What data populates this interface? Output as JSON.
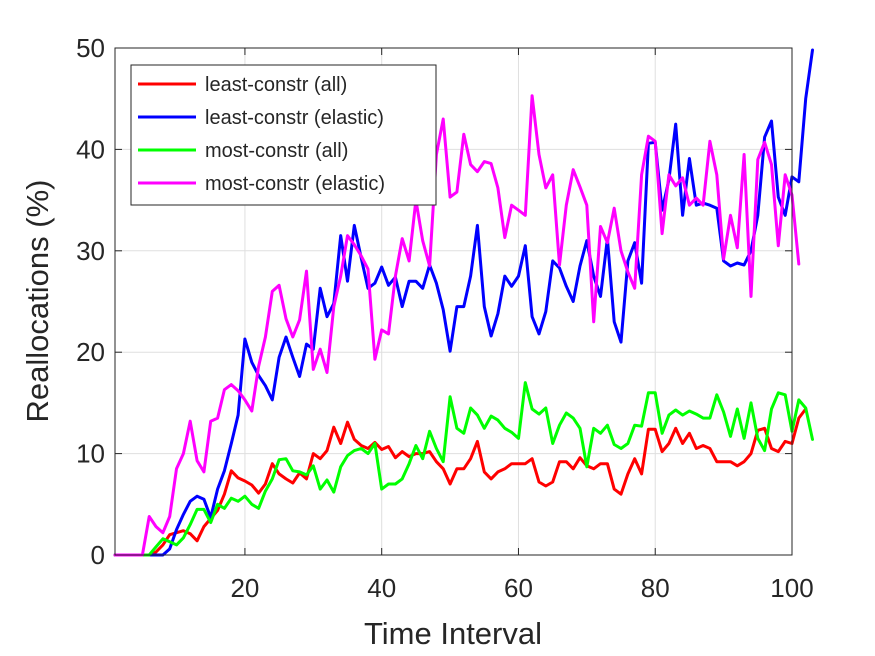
{
  "chart_data": {
    "type": "line",
    "xlabel": "Time Interval",
    "ylabel": "Reallocations (%)",
    "xlim": [
      1,
      100
    ],
    "ylim": [
      0,
      50
    ],
    "x_ticks": [
      20,
      40,
      60,
      80,
      100
    ],
    "y_ticks": [
      0,
      10,
      20,
      30,
      40,
      50
    ],
    "grid": true,
    "legend_position": "top-left",
    "series": [
      {
        "name": "least-constr (all)",
        "color": "#ff0000",
        "values": [
          0,
          0,
          0,
          0,
          0,
          0,
          0.3,
          1,
          2,
          2.2,
          2.4,
          2.1,
          1.4,
          2.8,
          3.6,
          4.4,
          6,
          8.3,
          7.6,
          7.3,
          6.9,
          6.1,
          7,
          9,
          8,
          7.5,
          7.1,
          8.1,
          7.5,
          10,
          9.5,
          10.3,
          12.6,
          11,
          13.1,
          11.4,
          10.8,
          10.5,
          11.1,
          10.4,
          10.7,
          9.6,
          10.2,
          9.7,
          10,
          10,
          10.2,
          9.2,
          8.5,
          7,
          8.5,
          8.5,
          9.5,
          11.2,
          8.2,
          7.5,
          8.2,
          8.5,
          9,
          9,
          9,
          9.5,
          7.2,
          6.8,
          7.2,
          9.2,
          9.2,
          8.5,
          9.6,
          8.8,
          8.5,
          9,
          9,
          6.5,
          6,
          8,
          9.5,
          8,
          12.4,
          12.4,
          10.2,
          11,
          12.5,
          11,
          12,
          10.5,
          10.8,
          10.5,
          9.2,
          9.2,
          9.2,
          8.8,
          9.2,
          10,
          12.3,
          12.5,
          10.5,
          10.2,
          11.2,
          11,
          13.5,
          14.4
        ]
      },
      {
        "name": "least-constr (elastic)",
        "color": "#0000ff",
        "values": [
          0,
          0,
          0,
          0,
          0,
          0,
          0,
          0,
          0.6,
          2.5,
          4,
          5.3,
          5.8,
          5.5,
          3.7,
          6.5,
          8.3,
          11,
          13.8,
          21.3,
          19,
          17.7,
          16.7,
          15.3,
          19.5,
          21.5,
          19.5,
          17.6,
          20.8,
          20.3,
          26.3,
          23.5,
          24.8,
          31.5,
          27,
          32.5,
          29.3,
          26.3,
          26.8,
          28.4,
          26.6,
          27.4,
          24.5,
          27,
          27,
          26.3,
          28.6,
          26.8,
          24.2,
          20.1,
          24.5,
          24.5,
          27.5,
          32.5,
          24.5,
          21.6,
          23.8,
          27.5,
          26.5,
          27.5,
          30.5,
          23.5,
          21.8,
          24,
          29,
          28.3,
          26.5,
          25,
          28.5,
          31,
          27.5,
          25.5,
          31.2,
          23,
          21,
          29,
          30.8,
          26.8,
          40.6,
          40.7,
          34,
          37,
          42.5,
          33.5,
          39.1,
          34.5,
          34.7,
          34.5,
          34.2,
          29,
          28.5,
          28.8,
          28.6,
          30,
          33.5,
          41.2,
          42.8,
          35.3,
          33.5,
          37.3,
          36.8,
          45,
          49.8
        ]
      },
      {
        "name": "most-constr (all)",
        "color": "#00ff00",
        "values": [
          0,
          0,
          0,
          0,
          0,
          0,
          0.8,
          1.6,
          1.3,
          1,
          1.7,
          3,
          4.5,
          4.5,
          3.2,
          5,
          4.6,
          5.6,
          5.3,
          5.8,
          5,
          4.6,
          6.3,
          7.5,
          9.4,
          9.5,
          8.3,
          8.2,
          7.9,
          8.8,
          6.5,
          7.4,
          6.2,
          8.7,
          9.8,
          10.3,
          10.5,
          10,
          11,
          6.5,
          7,
          7,
          7.5,
          9,
          10.8,
          9.5,
          12.2,
          10.5,
          9.2,
          15.6,
          12.5,
          12,
          14.5,
          13.8,
          12.5,
          13.7,
          13.3,
          12.5,
          12.1,
          11.5,
          17,
          14.4,
          13.9,
          14.5,
          11,
          12.8,
          14,
          13.5,
          12.5,
          8.7,
          12.5,
          12,
          12.8,
          10.9,
          10.5,
          11,
          12.8,
          12.7,
          16,
          16,
          12,
          13.8,
          14.3,
          13.8,
          14.2,
          13.9,
          13.5,
          13.5,
          15.8,
          14.1,
          11.7,
          14.4,
          11.5,
          15,
          11.5,
          10.3,
          14.4,
          16,
          15.8,
          12.2,
          15.3,
          14.5,
          11.4
        ]
      },
      {
        "name": "most-constr (elastic)",
        "color": "#ff00ff",
        "values": [
          0,
          0,
          0,
          0,
          0,
          3.8,
          2.8,
          2.2,
          3.8,
          8.5,
          10,
          13.2,
          9.3,
          8.2,
          13.2,
          13.5,
          16.3,
          16.8,
          16.2,
          15.3,
          14.2,
          18.6,
          21.5,
          26,
          26.6,
          23.3,
          21.5,
          23.2,
          28,
          18.3,
          20.3,
          18,
          24.5,
          27.5,
          31.5,
          30.6,
          29.5,
          28.2,
          19.3,
          22.2,
          21.8,
          27.5,
          31.2,
          29,
          35,
          31,
          28.5,
          39.5,
          43,
          35.3,
          35.8,
          41.5,
          38.5,
          37.8,
          38.8,
          38.6,
          36.2,
          31.3,
          34.5,
          34,
          33.5,
          45.3,
          39.5,
          36.2,
          37.5,
          28.6,
          34.5,
          38,
          36.3,
          34.5,
          23,
          32.4,
          30.8,
          34.2,
          30,
          27.9,
          26.3,
          37.5,
          41.3,
          40.8,
          31.7,
          37.5,
          36.4,
          37.2,
          34.5,
          35.2,
          34.5,
          40.8,
          37.5,
          29.2,
          33.5,
          30.3,
          39.5,
          25.5,
          39,
          40.7,
          38.5,
          30.5,
          37.5,
          35.5,
          28.7
        ]
      }
    ]
  }
}
